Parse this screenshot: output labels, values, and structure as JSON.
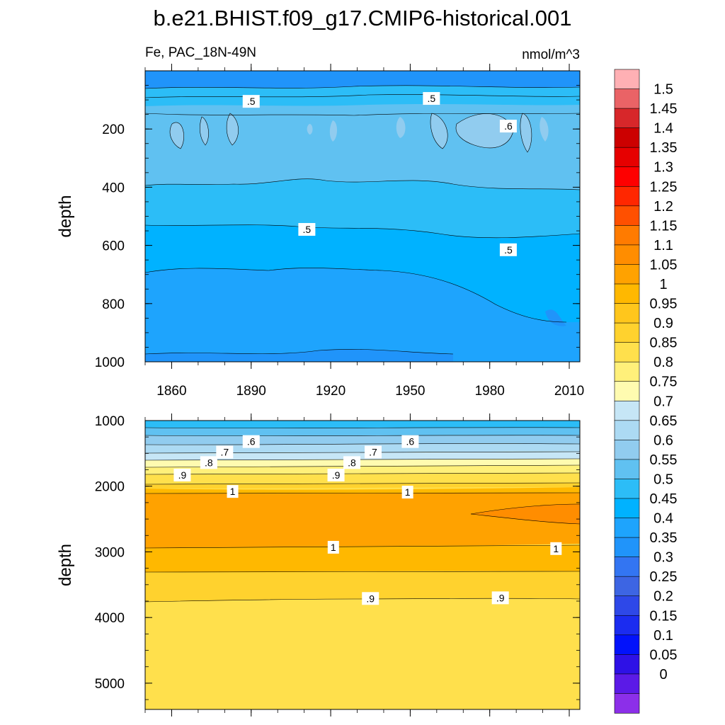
{
  "chart_data": {
    "type": "heatmap",
    "title": "b.e21.BHIST.f09_g17.CMIP6-historical.001",
    "variable_label": "Fe, PAC_18N-49N",
    "units_label": "nmol/m^3",
    "ylabel": "depth",
    "x_ticks": [
      "1860",
      "1890",
      "1920",
      "1950",
      "1980",
      "2010"
    ],
    "x_tick_values": [
      1860,
      1890,
      1920,
      1950,
      1980,
      2010
    ],
    "xlim": [
      1850,
      2014
    ],
    "panels": [
      {
        "name": "upper",
        "ylim": [
          0,
          1000
        ],
        "y_ticks": [
          "200",
          "400",
          "600",
          "800",
          "1000"
        ],
        "y_tick_values": [
          200,
          400,
          600,
          800,
          1000
        ],
        "contour_labels": [
          {
            "text": ".5",
            "x": 1890,
            "y": 105
          },
          {
            "text": ".5",
            "x": 1958,
            "y": 95
          },
          {
            "text": ".6",
            "x": 1987,
            "y": 190
          },
          {
            "text": ".5",
            "x": 1911,
            "y": 545
          },
          {
            "text": ".5",
            "x": 1987,
            "y": 615
          }
        ]
      },
      {
        "name": "lower",
        "ylim": [
          1000,
          5400
        ],
        "y_ticks": [
          "1000",
          "2000",
          "3000",
          "4000",
          "5000"
        ],
        "y_tick_values": [
          1000,
          2000,
          3000,
          4000,
          5000
        ],
        "contour_labels": [
          {
            "text": ".6",
            "x": 1890,
            "y": 1320
          },
          {
            "text": ".6",
            "x": 1950,
            "y": 1320
          },
          {
            "text": ".7",
            "x": 1880,
            "y": 1480
          },
          {
            "text": ".7",
            "x": 1936,
            "y": 1480
          },
          {
            "text": ".8",
            "x": 1874,
            "y": 1640
          },
          {
            "text": ".8",
            "x": 1928,
            "y": 1640
          },
          {
            "text": ".9",
            "x": 1864,
            "y": 1830
          },
          {
            "text": ".9",
            "x": 1922,
            "y": 1830
          },
          {
            "text": "1",
            "x": 1883,
            "y": 2080
          },
          {
            "text": "1",
            "x": 1949,
            "y": 2090
          },
          {
            "text": "1",
            "x": 1921,
            "y": 2930
          },
          {
            "text": "1",
            "x": 2005,
            "y": 2950
          },
          {
            "text": ".9",
            "x": 1935,
            "y": 3710
          },
          {
            "text": ".9",
            "x": 1984,
            "y": 3700
          }
        ]
      }
    ],
    "colorbar": {
      "levels": [
        "1.5",
        "1.45",
        "1.4",
        "1.35",
        "1.3",
        "1.25",
        "1.2",
        "1.15",
        "1.1",
        "1.05",
        "1",
        "0.95",
        "0.9",
        "0.85",
        "0.8",
        "0.75",
        "0.7",
        "0.65",
        "0.6",
        "0.55",
        "0.5",
        "0.45",
        "0.4",
        "0.35",
        "0.3",
        "0.25",
        "0.2",
        "0.15",
        "0.1",
        "0.05",
        "0"
      ],
      "colors_top_to_bottom": [
        "#ffb0b4",
        "#ea6366",
        "#d7272a",
        "#cc0000",
        "#e60000",
        "#fe0000",
        "#ff2700",
        "#ff5000",
        "#ff7b00",
        "#ff8d00",
        "#ffa200",
        "#ffb800",
        "#ffc61c",
        "#ffd22e",
        "#ffe04c",
        "#fff07a",
        "#fffbb0",
        "#c6e6f6",
        "#acdaf3",
        "#91ccef",
        "#60c1f1",
        "#2cbdf7",
        "#00b2ff",
        "#1ea4fd",
        "#2094fa",
        "#3375f2",
        "#3d65e3",
        "#2e48e8",
        "#1b2cf0",
        "#0212fb",
        "#2e11e6",
        "#5b1ae7",
        "#8c2fe9"
      ]
    }
  }
}
